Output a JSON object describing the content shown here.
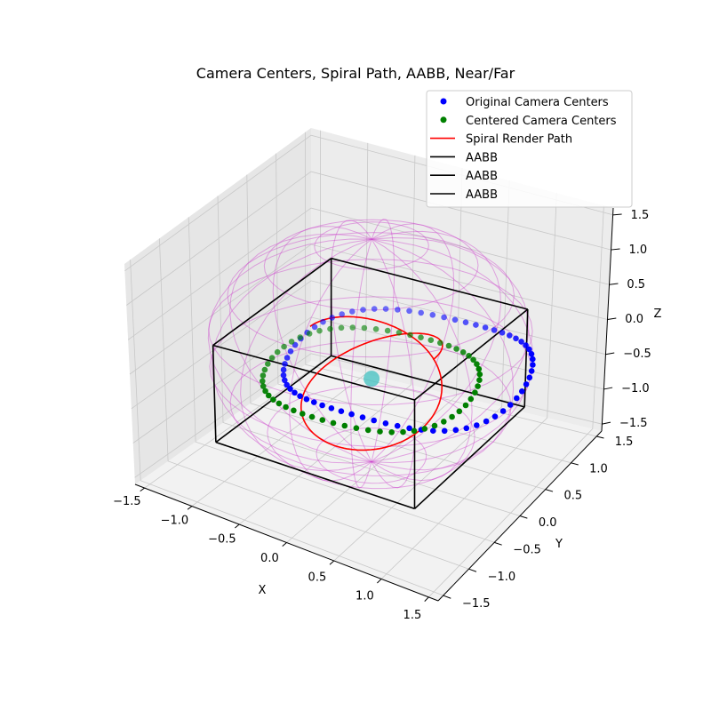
{
  "chart_data": {
    "type": "scatter3d",
    "title": "Camera Centers, Spiral Path, AABB, Near/Far",
    "axes": {
      "x": {
        "label": "X",
        "lim": [
          -1.6,
          1.6
        ],
        "ticks": [
          -1.5,
          -1.0,
          -0.5,
          0.0,
          0.5,
          1.0,
          1.5
        ],
        "tick_labels": [
          "−1.5",
          "−1.0",
          "−0.5",
          "0.0",
          "0.5",
          "1.0",
          "1.5"
        ]
      },
      "y": {
        "label": "Y",
        "lim": [
          -1.6,
          1.6
        ],
        "ticks": [
          -1.5,
          -1.0,
          -0.5,
          0.0,
          0.5,
          1.0,
          1.5
        ],
        "tick_labels": [
          "−1.5",
          "−1.0",
          "−0.5",
          "0.0",
          "0.5",
          "1.0",
          "1.5"
        ]
      },
      "z": {
        "label": "Z",
        "lim": [
          -1.6,
          1.6
        ],
        "ticks": [
          -1.5,
          -1.0,
          -0.5,
          0.0,
          0.5,
          1.0,
          1.5
        ],
        "tick_labels": [
          "−1.5",
          "−1.0",
          "−0.5",
          "0.0",
          "0.5",
          "1.0",
          "1.5"
        ]
      }
    },
    "grid": true,
    "legend": {
      "placement": "top-right",
      "entries": [
        {
          "label": "Original Camera Centers",
          "marker": "dot",
          "color": "#0000ff"
        },
        {
          "label": "Centered Camera Centers",
          "marker": "dot",
          "color": "#008000"
        },
        {
          "label": "Spiral Render Path",
          "marker": "line",
          "color": "#ff0000"
        },
        {
          "label": "AABB",
          "marker": "line",
          "color": "#000000"
        },
        {
          "label": "AABB",
          "marker": "line",
          "color": "#000000"
        },
        {
          "label": "AABB",
          "marker": "line",
          "color": "#000000"
        }
      ]
    },
    "colors": {
      "original": "#0000ff",
      "centered": "#008000",
      "spiral": "#ff0000",
      "aabb": "#000000",
      "sphere": "#cc44cc",
      "origin_marker": "#40c0c0"
    },
    "series": [
      {
        "name": "Original Camera Centers",
        "kind": "scatter",
        "ring": {
          "center": [
            0.25,
            0.25,
            -0.3
          ],
          "radius": 1.15,
          "count": 66,
          "z_wobble": 0.08
        }
      },
      {
        "name": "Centered Camera Centers",
        "kind": "scatter",
        "ring": {
          "center": [
            0.0,
            0.0,
            -0.38
          ],
          "radius": 1.0,
          "count": 58,
          "z_wobble": 0.05
        }
      },
      {
        "name": "Spiral Render Path",
        "kind": "line",
        "spiral": {
          "rx": 0.65,
          "ry": 0.65,
          "z_center": -0.4,
          "z_amplitude": 0.5,
          "turns": 1.5
        }
      },
      {
        "name": "AABB",
        "kind": "box",
        "min": [
          -1.05,
          -1.05,
          -1.05
        ],
        "max": [
          1.05,
          1.05,
          0.3
        ]
      },
      {
        "name": "Near/Far",
        "kind": "wireframe-sphere",
        "radius": 1.5,
        "meridians": 16,
        "parallels": 9
      }
    ]
  }
}
